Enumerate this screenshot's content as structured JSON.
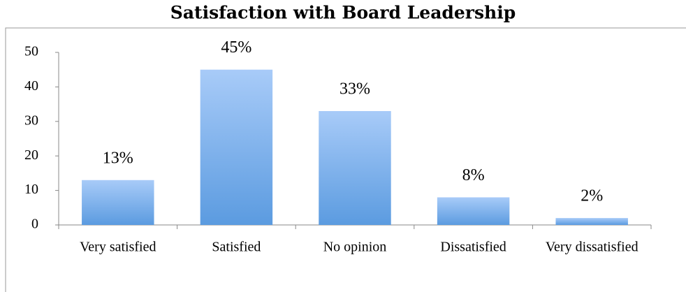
{
  "chart_data": {
    "type": "bar",
    "title": "Satisfaction with Board Leadership",
    "categories": [
      "Very satisfied",
      "Satisfied",
      "No opinion",
      "Dissatisfied",
      "Very dissatisfied"
    ],
    "values": [
      13,
      45,
      33,
      8,
      2
    ],
    "value_labels": [
      "13%",
      "45%",
      "33%",
      "8%",
      "2%"
    ],
    "color": "#5b9be0",
    "ylim": [
      0,
      50
    ],
    "yticks": [
      0,
      10,
      20,
      30,
      40,
      50
    ],
    "grid": false
  }
}
